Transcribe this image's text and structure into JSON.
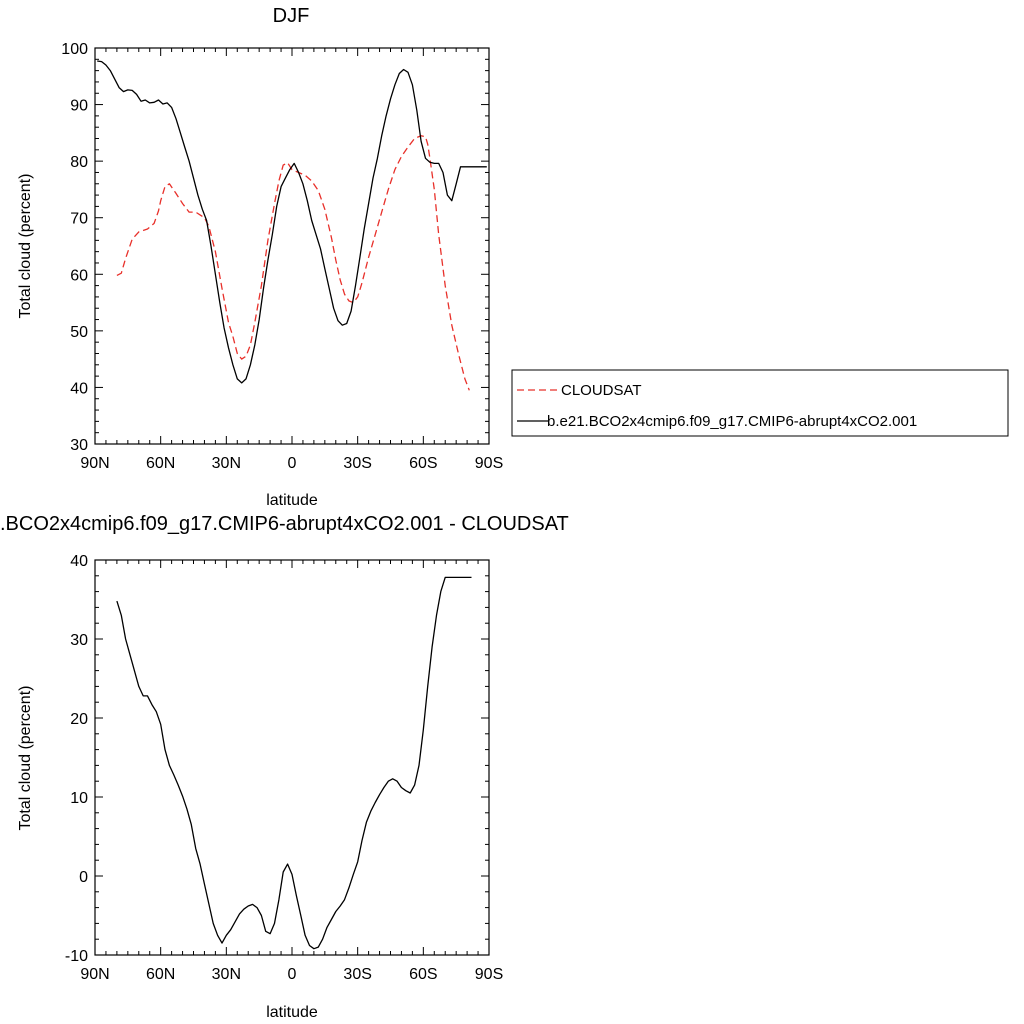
{
  "chart_data": [
    {
      "type": "line",
      "title": "DJF",
      "xlabel": "latitude",
      "ylabel": "Total cloud (percent)",
      "xlim": [
        -90,
        90
      ],
      "ylim": [
        30,
        100
      ],
      "x_tick_values": [
        -90,
        -60,
        -30,
        0,
        30,
        60,
        90
      ],
      "x_tick_labels": [
        "90N",
        "60N",
        "30N",
        "0",
        "30S",
        "60S",
        "90S"
      ],
      "y_tick_values": [
        30,
        40,
        50,
        60,
        70,
        80,
        90,
        100
      ],
      "y_tick_labels": [
        "30",
        "40",
        "50",
        "60",
        "70",
        "80",
        "90",
        "100"
      ],
      "grid": false,
      "legend_position": "right-outside",
      "series": [
        {
          "name": "CLOUDSAT",
          "color": "#e8302a",
          "dash": "dashed",
          "x": [
            -80,
            -78,
            -76,
            -73,
            -70,
            -66,
            -63,
            -61,
            -60,
            -58,
            -56,
            -53,
            -50,
            -47,
            -44,
            -42,
            -40,
            -38,
            -35,
            -32,
            -29,
            -27,
            -25,
            -23,
            -21,
            -19,
            -17,
            -14,
            -11,
            -8,
            -6,
            -4,
            -2,
            0,
            3,
            6,
            9,
            12,
            15,
            18,
            20,
            22,
            24,
            26,
            28,
            30,
            32,
            35,
            38,
            41,
            44,
            47,
            50,
            53,
            56,
            59,
            61,
            62,
            63,
            65,
            67,
            70,
            73,
            76,
            79,
            81
          ],
          "values": [
            59.8,
            60.2,
            62.8,
            66.2,
            67.5,
            68.0,
            69.0,
            71.2,
            73.0,
            75.5,
            76.0,
            74.3,
            72.5,
            71.0,
            71.0,
            70.5,
            70.0,
            68.5,
            64.0,
            57.5,
            51.5,
            49.0,
            46.0,
            45.0,
            45.5,
            47.5,
            51.5,
            58.0,
            66.0,
            72.5,
            76.5,
            79.3,
            79.7,
            78.5,
            78.0,
            77.5,
            76.5,
            74.8,
            71.5,
            66.5,
            62.5,
            59.0,
            56.5,
            55.3,
            55.0,
            56.0,
            58.5,
            63.0,
            67.0,
            71.0,
            75.0,
            78.5,
            80.8,
            82.5,
            84.0,
            84.5,
            84.3,
            83.0,
            80.5,
            75.0,
            67.0,
            58.0,
            51.0,
            46.0,
            41.5,
            39.5
          ]
        },
        {
          "name": "b.e21.BCO2x4cmip6.f09_g17.CMIP6-abrupt4xCO2.001",
          "color": "#000000",
          "dash": "solid",
          "x": [
            -89,
            -87,
            -85,
            -83,
            -81,
            -79,
            -77,
            -75,
            -73,
            -71,
            -69,
            -67,
            -65,
            -63,
            -61,
            -59,
            -57,
            -55,
            -53,
            -51,
            -49,
            -47,
            -45,
            -43,
            -41,
            -39,
            -37,
            -35,
            -33,
            -31,
            -29,
            -27,
            -25,
            -23,
            -21,
            -19,
            -17,
            -15,
            -13,
            -11,
            -9,
            -7,
            -5,
            -3,
            -1,
            1,
            3,
            5,
            7,
            9,
            11,
            13,
            15,
            17,
            19,
            21,
            23,
            25,
            27,
            29,
            31,
            33,
            35,
            37,
            39,
            41,
            43,
            45,
            47,
            49,
            51,
            53,
            55,
            57,
            59,
            61,
            63,
            65,
            67,
            69,
            71,
            73,
            75,
            77,
            79,
            81,
            83,
            85,
            87,
            89
          ],
          "values": [
            97.7,
            97.6,
            97.0,
            96.0,
            94.5,
            93.0,
            92.3,
            92.6,
            92.5,
            91.8,
            90.6,
            90.8,
            90.3,
            90.4,
            90.8,
            90.1,
            90.3,
            89.5,
            87.5,
            85.0,
            82.5,
            80.0,
            77.0,
            74.0,
            71.5,
            69.5,
            65.0,
            60.0,
            55.0,
            50.5,
            47.0,
            44.0,
            41.5,
            40.8,
            41.5,
            44.0,
            47.5,
            52.0,
            57.5,
            62.5,
            67.0,
            72.0,
            75.5,
            77.0,
            78.5,
            79.6,
            78.0,
            76.0,
            73.0,
            69.5,
            67.0,
            64.5,
            61.0,
            57.5,
            54.0,
            51.8,
            51.0,
            51.3,
            53.5,
            58.0,
            63.0,
            68.0,
            72.5,
            77.0,
            80.5,
            84.5,
            88.0,
            91.0,
            93.5,
            95.5,
            96.2,
            95.7,
            93.5,
            89.0,
            83.5,
            80.5,
            79.8,
            79.6,
            79.6,
            78.0,
            74.0,
            73.0,
            76.0,
            79.0,
            79.0,
            79.0,
            79.0,
            79.0,
            79.0,
            79.0
          ]
        }
      ]
    },
    {
      "type": "line",
      "title": ".BCO2x4cmip6.f09_g17.CMIP6-abrupt4xCO2.001 - CLOUDSAT",
      "xlabel": "latitude",
      "ylabel": "Total cloud (percent)",
      "xlim": [
        -90,
        90
      ],
      "ylim": [
        -10,
        40
      ],
      "x_tick_values": [
        -90,
        -60,
        -30,
        0,
        30,
        60,
        90
      ],
      "x_tick_labels": [
        "90N",
        "60N",
        "30N",
        "0",
        "30S",
        "60S",
        "90S"
      ],
      "y_tick_values": [
        -10,
        0,
        10,
        20,
        30,
        40
      ],
      "y_tick_labels": [
        "-10",
        "0",
        "10",
        "20",
        "30",
        "40"
      ],
      "grid": false,
      "series": [
        {
          "color": "#000000",
          "dash": "solid",
          "x": [
            -80,
            -78,
            -76,
            -73,
            -70,
            -68,
            -66,
            -64,
            -62,
            -60,
            -58,
            -56,
            -54,
            -52,
            -50,
            -48,
            -46,
            -44,
            -42,
            -40,
            -38,
            -36,
            -34,
            -32,
            -30,
            -28,
            -26,
            -24,
            -22,
            -20,
            -18,
            -16,
            -14,
            -12,
            -10,
            -8,
            -6,
            -4,
            -2,
            0,
            2,
            4,
            6,
            8,
            10,
            12,
            14,
            16,
            18,
            20,
            22,
            24,
            26,
            28,
            30,
            32,
            34,
            36,
            38,
            40,
            42,
            44,
            46,
            48,
            50,
            52,
            54,
            56,
            58,
            60,
            62,
            64,
            66,
            68,
            70,
            72,
            74,
            76,
            78,
            80,
            82
          ],
          "values": [
            34.8,
            33.0,
            30.0,
            27.0,
            24.0,
            22.8,
            22.8,
            21.7,
            20.8,
            19.2,
            16.0,
            14.0,
            12.8,
            11.5,
            10.1,
            8.5,
            6.5,
            3.5,
            1.5,
            -1.0,
            -3.5,
            -6.0,
            -7.5,
            -8.5,
            -7.5,
            -6.8,
            -5.8,
            -4.8,
            -4.2,
            -3.8,
            -3.6,
            -4.0,
            -5.0,
            -7.0,
            -7.3,
            -6.0,
            -3.0,
            0.5,
            1.5,
            0.2,
            -2.5,
            -5.0,
            -7.5,
            -8.8,
            -9.2,
            -9.0,
            -8.0,
            -6.5,
            -5.5,
            -4.5,
            -3.8,
            -3.0,
            -1.5,
            0.2,
            1.8,
            4.5,
            6.8,
            8.2,
            9.3,
            10.3,
            11.2,
            12.0,
            12.3,
            12.0,
            11.2,
            10.8,
            10.5,
            11.5,
            14.0,
            18.5,
            24.0,
            29.0,
            33.0,
            36.0,
            37.8,
            37.8,
            37.8,
            37.8,
            37.8,
            37.8,
            37.8
          ]
        }
      ]
    }
  ]
}
